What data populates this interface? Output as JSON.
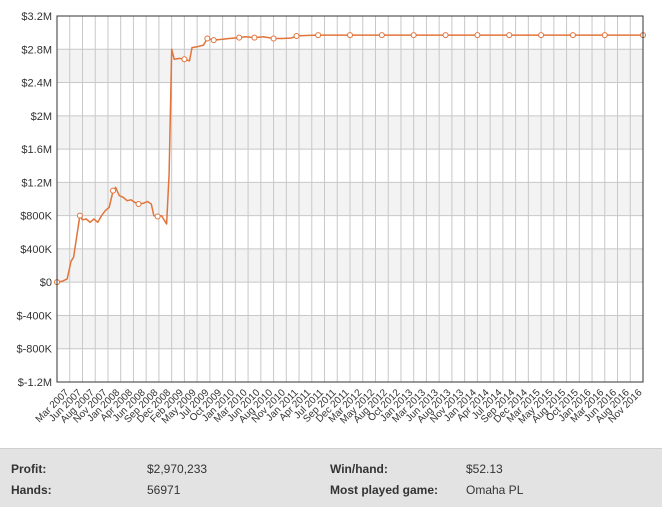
{
  "chart_data": {
    "type": "line",
    "title": "",
    "xlabel": "",
    "ylabel": "",
    "ylim": [
      -1200000,
      3200000
    ],
    "yticks": [
      3200000,
      2800000,
      2400000,
      2000000,
      1600000,
      1200000,
      800000,
      400000,
      0,
      -400000,
      -800000,
      -1200000
    ],
    "ytick_labels": [
      "$3.2M",
      "$2.8M",
      "$2.4M",
      "$2M",
      "$1.6M",
      "$1.2M",
      "$800K",
      "$400K",
      "$0",
      "$-400K",
      "$-800K",
      "$-1.2M"
    ],
    "x_labels": [
      "Mar 2007",
      "Jun 2007",
      "Aug 2007",
      "Nov 2007",
      "Jan 2008",
      "Apr 2008",
      "Jun 2008",
      "Sep 2008",
      "Dec 2008",
      "Feb 2009",
      "May 2009",
      "Jul 2009",
      "Oct 2009",
      "Jan 2010",
      "Mar 2010",
      "Jun 2010",
      "Aug 2010",
      "Nov 2010",
      "Jan 2011",
      "Apr 2011",
      "Jul 2011",
      "Sep 2011",
      "Dec 2011",
      "Mar 2012",
      "May 2012",
      "Aug 2012",
      "Oct 2012",
      "Jan 2013",
      "Mar 2013",
      "Jun 2013",
      "Aug 2013",
      "Nov 2013",
      "Jan 2014",
      "Apr 2014",
      "Jul 2014",
      "Sep 2014",
      "Dec 2014",
      "Mar 2015",
      "May 2015",
      "Aug 2015",
      "Oct 2015",
      "Jan 2016",
      "Mar 2016",
      "Jun 2016",
      "Aug 2016",
      "Nov 2016"
    ],
    "grid": true,
    "line_color": "#e2733a",
    "marker_fill": "#ffffff",
    "series": [
      {
        "values": [
          [
            0.0,
            0
          ],
          [
            0.4,
            10000
          ],
          [
            0.8,
            40000
          ],
          [
            1.1,
            250000
          ],
          [
            1.3,
            300000
          ],
          [
            1.5,
            500000
          ],
          [
            1.8,
            800000
          ],
          [
            2.0,
            750000
          ],
          [
            2.3,
            760000
          ],
          [
            2.6,
            720000
          ],
          [
            2.9,
            760000
          ],
          [
            3.2,
            720000
          ],
          [
            3.5,
            800000
          ],
          [
            3.8,
            860000
          ],
          [
            4.1,
            900000
          ],
          [
            4.4,
            1100000
          ],
          [
            4.6,
            1140000
          ],
          [
            4.9,
            1040000
          ],
          [
            5.2,
            1020000
          ],
          [
            5.5,
            980000
          ],
          [
            5.8,
            990000
          ],
          [
            6.1,
            960000
          ],
          [
            6.4,
            940000
          ],
          [
            6.8,
            950000
          ],
          [
            7.1,
            970000
          ],
          [
            7.4,
            940000
          ],
          [
            7.6,
            800000
          ],
          [
            7.9,
            790000
          ],
          [
            8.2,
            800000
          ],
          [
            8.6,
            700000
          ],
          [
            8.8,
            1300000
          ],
          [
            9.0,
            2800000
          ],
          [
            9.2,
            2680000
          ],
          [
            9.6,
            2690000
          ],
          [
            10.0,
            2680000
          ],
          [
            10.4,
            2660000
          ],
          [
            10.6,
            2820000
          ],
          [
            11.0,
            2830000
          ],
          [
            11.5,
            2850000
          ],
          [
            11.8,
            2930000
          ],
          [
            12.3,
            2910000
          ],
          [
            13.0,
            2920000
          ],
          [
            13.5,
            2930000
          ],
          [
            14.3,
            2940000
          ],
          [
            14.8,
            2950000
          ],
          [
            15.5,
            2940000
          ],
          [
            16.2,
            2950000
          ],
          [
            17.0,
            2930000
          ],
          [
            17.7,
            2930000
          ],
          [
            18.4,
            2935000
          ],
          [
            18.8,
            2960000
          ],
          [
            19.5,
            2965000
          ],
          [
            20.5,
            2970000
          ],
          [
            46.0,
            2970233
          ]
        ]
      }
    ],
    "markers": [
      [
        0.0,
        0
      ],
      [
        1.8,
        800000
      ],
      [
        4.4,
        1100000
      ],
      [
        6.4,
        940000
      ],
      [
        7.9,
        790000
      ],
      [
        10.0,
        2680000
      ],
      [
        11.8,
        2930000
      ],
      [
        12.3,
        2910000
      ],
      [
        14.3,
        2940000
      ],
      [
        15.5,
        2940000
      ],
      [
        17.0,
        2930000
      ],
      [
        18.8,
        2960000
      ],
      [
        20.5,
        2970000
      ],
      [
        23.0,
        2970000
      ],
      [
        25.5,
        2970000
      ],
      [
        28.0,
        2970000
      ],
      [
        30.5,
        2970000
      ],
      [
        33.0,
        2970000
      ],
      [
        35.5,
        2970000
      ],
      [
        38.0,
        2970000
      ],
      [
        40.5,
        2970000
      ],
      [
        43.0,
        2970000
      ],
      [
        46.0,
        2970233
      ]
    ]
  },
  "stats": {
    "profit_label": "Profit:",
    "profit_value": "$2,970,233",
    "hands_label": "Hands:",
    "hands_value": "56971",
    "winhand_label": "Win/hand:",
    "winhand_value": "$52.13",
    "game_label": "Most played game:",
    "game_value": "Omaha PL"
  }
}
